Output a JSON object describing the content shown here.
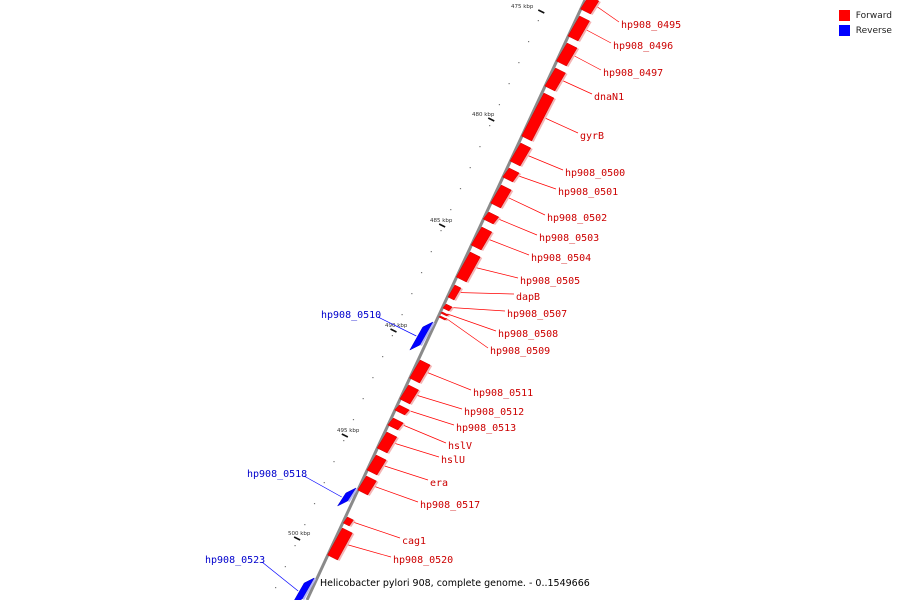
{
  "legend": {
    "forward_label": "Forward",
    "reverse_label": "Reverse",
    "forward_color": "#ff0000",
    "reverse_color": "#0000ff"
  },
  "caption": "Helicobacter pylori 908, complete genome. - 0..1549666",
  "ticks": [
    "475 kbp",
    "480 kbp",
    "485 kbp",
    "490 kbp",
    "495 kbp",
    "500 kbp"
  ],
  "genes": [
    {
      "name": "hp908_0495",
      "strand": "forward"
    },
    {
      "name": "hp908_0496",
      "strand": "forward"
    },
    {
      "name": "hp908_0497",
      "strand": "forward"
    },
    {
      "name": "dnaN1",
      "strand": "forward"
    },
    {
      "name": "gyrB",
      "strand": "forward"
    },
    {
      "name": "hp908_0500",
      "strand": "forward"
    },
    {
      "name": "hp908_0501",
      "strand": "forward"
    },
    {
      "name": "hp908_0502",
      "strand": "forward"
    },
    {
      "name": "hp908_0503",
      "strand": "forward"
    },
    {
      "name": "hp908_0504",
      "strand": "forward"
    },
    {
      "name": "hp908_0505",
      "strand": "forward"
    },
    {
      "name": "dapB",
      "strand": "forward"
    },
    {
      "name": "hp908_0507",
      "strand": "forward"
    },
    {
      "name": "hp908_0508",
      "strand": "forward"
    },
    {
      "name": "hp908_0509",
      "strand": "forward"
    },
    {
      "name": "hp908_0510",
      "strand": "reverse"
    },
    {
      "name": "hp908_0511",
      "strand": "forward"
    },
    {
      "name": "hp908_0512",
      "strand": "forward"
    },
    {
      "name": "hp908_0513",
      "strand": "forward"
    },
    {
      "name": "hslV",
      "strand": "forward"
    },
    {
      "name": "hslU",
      "strand": "forward"
    },
    {
      "name": "era",
      "strand": "forward"
    },
    {
      "name": "hp908_0517",
      "strand": "forward"
    },
    {
      "name": "hp908_0518",
      "strand": "reverse"
    },
    {
      "name": "cag1",
      "strand": "forward"
    },
    {
      "name": "hp908_0520",
      "strand": "forward"
    },
    {
      "name": "hp908_0523",
      "strand": "reverse"
    }
  ]
}
